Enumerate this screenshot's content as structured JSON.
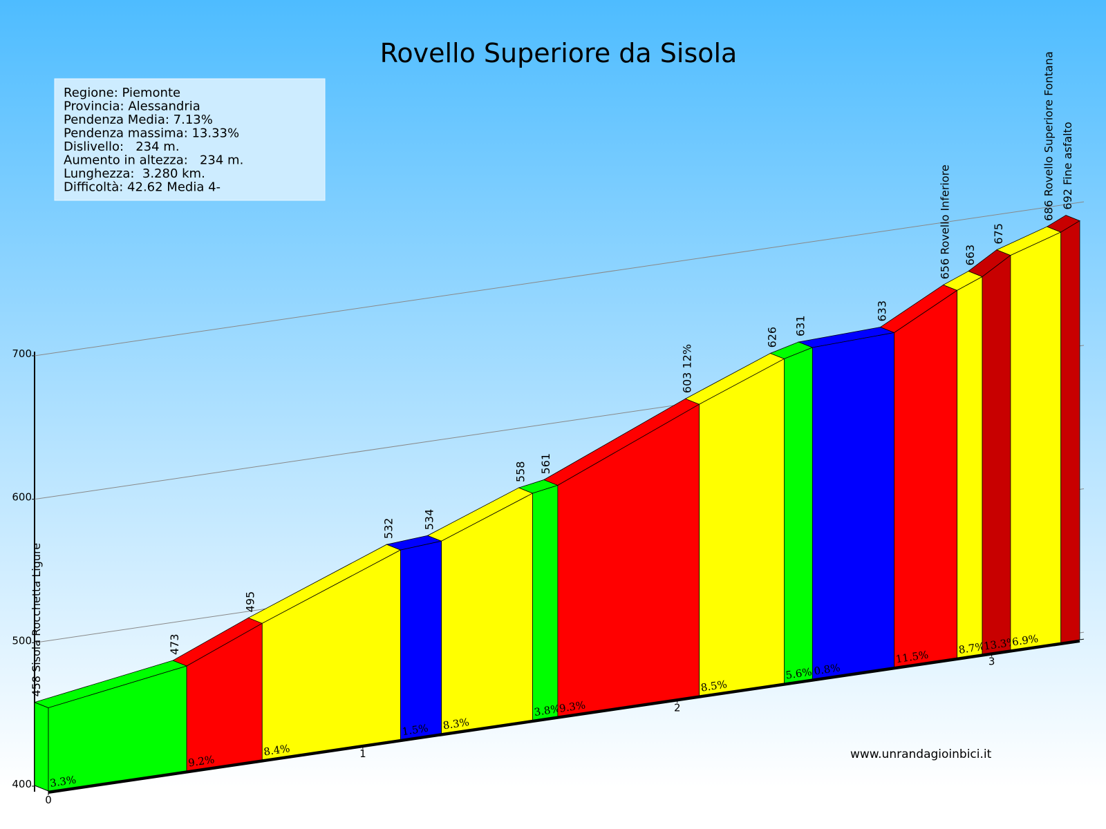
{
  "chart_data": {
    "type": "elevation-profile",
    "title": "Rovello Superiore da Sisola",
    "info": [
      "Regione: Piemonte",
      "Provincia: Alessandria",
      "Pendenza Media: 7.13%",
      "Pendenza massima: 13.33%",
      "Dislivello:   234 m.",
      "Aumento in altezza:   234 m.",
      "Lunghezza:  3.280 km.",
      "Difficoltà: 42.62 Media 4-"
    ],
    "x": [
      0,
      0.44,
      0.68,
      1.12,
      1.25,
      1.54,
      1.62,
      2.07,
      2.34,
      2.43,
      2.69,
      2.89,
      2.97,
      3.06,
      3.22,
      3.28
    ],
    "values": [
      458,
      473,
      495,
      532,
      534,
      558,
      561,
      603,
      626,
      631,
      633,
      656,
      663,
      675,
      686,
      692
    ],
    "value_labels": [
      "458 Sisola Rocchetta Ligure",
      "473",
      "495",
      "532",
      "534",
      "558",
      "561",
      "603 12%",
      "626",
      "631",
      "633",
      "656 Rovello Inferiore",
      "663",
      "675",
      "686  Rovello Superiore Fontana",
      "692 Fine asfalto"
    ],
    "grades": [
      3.3,
      9.2,
      8.4,
      1.5,
      8.3,
      3.8,
      9.3,
      8.5,
      5.6,
      0.8,
      11.5,
      8.7,
      13.3,
      6.9,
      null
    ],
    "grade_labels": [
      "3.3%",
      "9.2%",
      "8.4%",
      "1.5%",
      "8.3%",
      "3.8%",
      "9.3%",
      "8.5%",
      "5.6%",
      "0.8%",
      "11.5%",
      "8.7%",
      "13.3%",
      "6.9%",
      null
    ],
    "colors": [
      "#00ff00",
      "#ff0000",
      "#ffff00",
      "#0000ff",
      "#ffff00",
      "#00ff00",
      "#ff0000",
      "#ffff00",
      "#00ff00",
      "#0000ff",
      "#ff0000",
      "#ffff00",
      "#c80000",
      "#ffff00",
      "#c80000"
    ],
    "xlim": [
      0,
      3.28
    ],
    "xticks": [
      0,
      1,
      2,
      3
    ],
    "ylim": [
      400,
      700
    ],
    "yticks": [
      400,
      500,
      600,
      700
    ],
    "grid": true,
    "credit": "www.unrandagioinbici.it"
  }
}
